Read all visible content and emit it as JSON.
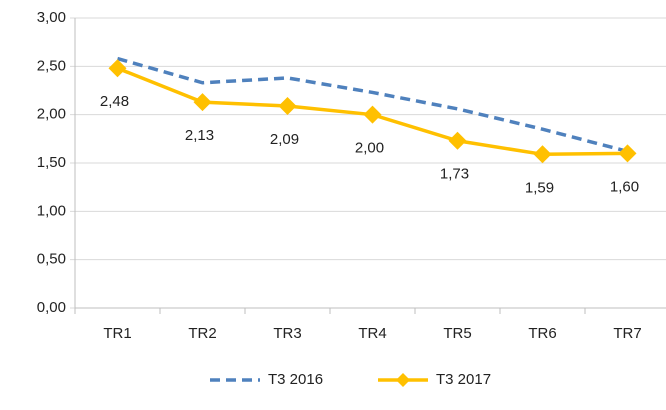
{
  "chart_data": {
    "type": "line",
    "categories": [
      "TR1",
      "TR2",
      "TR3",
      "TR4",
      "TR5",
      "TR6",
      "TR7"
    ],
    "series": [
      {
        "name": "T3 2016",
        "color": "#4f81bd",
        "dashed": true,
        "values": [
          2.58,
          2.33,
          2.38,
          2.23,
          2.06,
          1.85,
          1.62
        ]
      },
      {
        "name": "T3 2017",
        "color": "#ffc000",
        "marker": "diamond",
        "values": [
          2.48,
          2.13,
          2.09,
          2.0,
          1.73,
          1.59,
          1.6
        ],
        "value_labels": [
          "2,48",
          "2,13",
          "2,09",
          "2,00",
          "1,73",
          "1,59",
          "1,60"
        ]
      }
    ],
    "ylim": [
      0,
      3
    ],
    "yticks": [
      {
        "value": 0,
        "label": "0,00"
      },
      {
        "value": 0.5,
        "label": "0,50"
      },
      {
        "value": 1,
        "label": "1,00"
      },
      {
        "value": 1.5,
        "label": "1,50"
      },
      {
        "value": 2,
        "label": "2,00"
      },
      {
        "value": 2.5,
        "label": "2,50"
      },
      {
        "value": 3,
        "label": "3,00"
      }
    ],
    "grid": true,
    "legend": "bottom"
  }
}
